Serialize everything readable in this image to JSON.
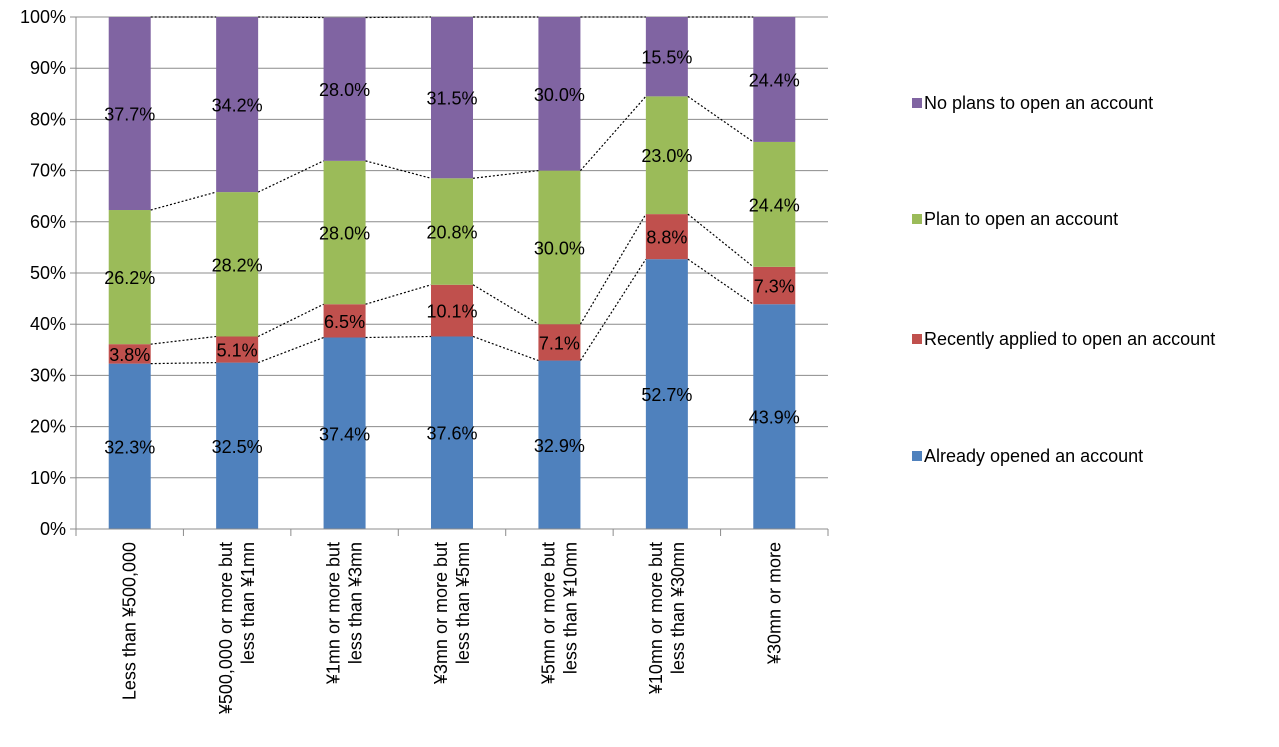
{
  "chart_data": {
    "type": "bar",
    "stacked": true,
    "percent_axis": true,
    "categories": [
      [
        "Less than ¥500,000"
      ],
      [
        "¥500,000 or more but",
        "less than ¥1mn"
      ],
      [
        "¥1mn or more but",
        "less than ¥3mn"
      ],
      [
        "¥3mn or more but",
        "less than ¥5mn"
      ],
      [
        "¥5mn or more but",
        "less than ¥10mn"
      ],
      [
        "¥10mn or more but",
        "less than ¥30mn"
      ],
      [
        "¥30mn or more"
      ]
    ],
    "series": [
      {
        "name": "Already opened an account",
        "color": "#4F81BD",
        "values": [
          32.3,
          32.5,
          37.4,
          37.6,
          32.9,
          52.7,
          43.9
        ],
        "labels": [
          "32.3%",
          "32.5%",
          "37.4%",
          "37.6%",
          "32.9%",
          "52.7%",
          "43.9%"
        ]
      },
      {
        "name": "Recently applied to open an account",
        "color": "#C0504D",
        "values": [
          3.8,
          5.1,
          6.5,
          10.1,
          7.1,
          8.8,
          7.3
        ],
        "labels": [
          "3.8%",
          "5.1%",
          "6.5%",
          "10.1%",
          "7.1%",
          "8.8%",
          "7.3%"
        ]
      },
      {
        "name": "Plan to open an account",
        "color": "#9BBB59",
        "values": [
          26.2,
          28.2,
          28.0,
          20.8,
          30.0,
          23.0,
          24.4
        ],
        "labels": [
          "26.2%",
          "28.2%",
          "28.0%",
          "20.8%",
          "30.0%",
          "23.0%",
          "24.4%"
        ]
      },
      {
        "name": "No plans to open an account",
        "color": "#8064A2",
        "values": [
          37.7,
          34.2,
          28.0,
          31.5,
          30.0,
          15.5,
          24.4
        ],
        "labels": [
          "37.7%",
          "34.2%",
          "28.0%",
          "31.5%",
          "30.0%",
          "15.5%",
          "24.4%"
        ]
      }
    ],
    "y_ticks": [
      "0%",
      "10%",
      "20%",
      "30%",
      "40%",
      "50%",
      "60%",
      "70%",
      "80%",
      "90%",
      "100%"
    ],
    "ylim": [
      0,
      100
    ],
    "grid": true,
    "series_lines": true,
    "legend_position": "right"
  }
}
